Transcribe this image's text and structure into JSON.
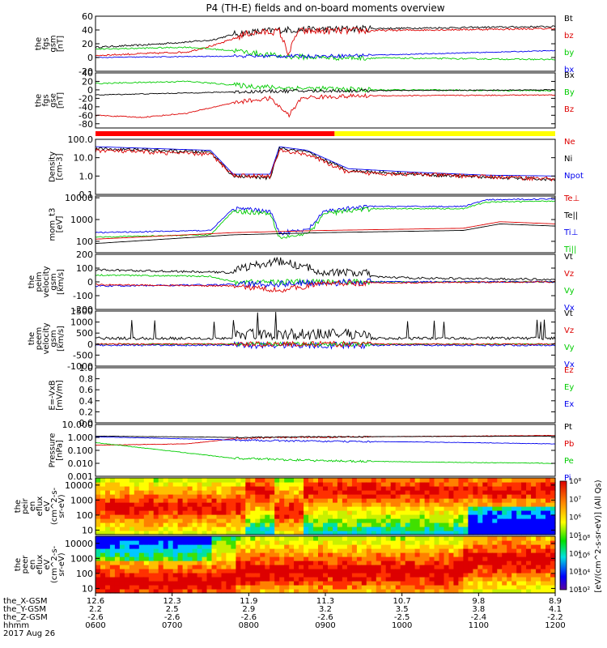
{
  "title": "P4 (TH-E) fields and on-board moments overview",
  "chart_data": {
    "type": "line",
    "panels": [
      {
        "id": "fgs-gsm",
        "ylabel": [
          "the",
          "fgs",
          "gsm",
          "[nT]"
        ],
        "ylim": [
          -20,
          60
        ],
        "ticks": [
          {
            "v": 60,
            "t": "60"
          },
          {
            "v": 40,
            "t": "40"
          },
          {
            "v": 20,
            "t": "20"
          },
          {
            "v": 0,
            "t": "0"
          },
          {
            "v": -20,
            "t": "-20"
          }
        ],
        "legend": [
          {
            "t": "Bt",
            "c": "#000000"
          },
          {
            "t": "bz",
            "c": "#dd0000"
          },
          {
            "t": "by",
            "c": "#00cc00"
          },
          {
            "t": "bx",
            "c": "#0000ee"
          }
        ]
      },
      {
        "id": "fgs-gse",
        "ylabel": [
          "the",
          "fgs",
          "gse",
          "[nT]"
        ],
        "ylim": [
          -90,
          40
        ],
        "ticks": [
          {
            "v": 40,
            "t": "40"
          },
          {
            "v": 20,
            "t": "20"
          },
          {
            "v": 0,
            "t": "0"
          },
          {
            "v": -20,
            "t": "-20"
          },
          {
            "v": -40,
            "t": "-40"
          },
          {
            "v": -60,
            "t": "-60"
          },
          {
            "v": -80,
            "t": "-80"
          }
        ],
        "legend": [
          {
            "t": "Bx",
            "c": "#000000"
          },
          {
            "t": "By",
            "c": "#00cc00"
          },
          {
            "t": "Bz",
            "c": "#dd0000"
          }
        ]
      },
      {
        "id": "density",
        "ylabel": [
          "Density",
          "[cm-3]"
        ],
        "ylim": [
          0.1,
          100
        ],
        "log": true,
        "ticks": [
          {
            "v": 100,
            "t": "100.0"
          },
          {
            "v": 10,
            "t": "10.0"
          },
          {
            "v": 1,
            "t": "1.0"
          },
          {
            "v": 0.1,
            "t": "0.1"
          }
        ],
        "legend": [
          {
            "t": "Ne",
            "c": "#dd0000"
          },
          {
            "t": "Ni",
            "c": "#000000"
          },
          {
            "t": "Npot",
            "c": "#0000ee"
          }
        ]
      },
      {
        "id": "temperature",
        "ylabel": [
          "mom_t3",
          "[eV]"
        ],
        "ylim": [
          30,
          12000
        ],
        "log": true,
        "ticks": [
          {
            "v": 10000,
            "t": "10000"
          },
          {
            "v": 1000,
            "t": "1000"
          },
          {
            "v": 100,
            "t": "100"
          }
        ],
        "legend": [
          {
            "t": "Te⊥",
            "c": "#dd0000"
          },
          {
            "t": "Te||",
            "c": "#000000"
          },
          {
            "t": "Ti⊥",
            "c": "#0000ee"
          },
          {
            "t": "Ti||",
            "c": "#00cc00"
          }
        ]
      },
      {
        "id": "ion-velocity",
        "ylabel": [
          "the",
          "peim",
          "velocity",
          "gsm",
          "[km/s]"
        ],
        "ylim": [
          -200,
          200
        ],
        "ticks": [
          {
            "v": 200,
            "t": "200"
          },
          {
            "v": 100,
            "t": "100"
          },
          {
            "v": 0,
            "t": "0"
          },
          {
            "v": -100,
            "t": "-100"
          },
          {
            "v": -200,
            "t": "-200"
          }
        ],
        "legend": [
          {
            "t": "Vt",
            "c": "#000000"
          },
          {
            "t": "Vz",
            "c": "#dd0000"
          },
          {
            "t": "Vy",
            "c": "#00cc00"
          },
          {
            "t": "Vx",
            "c": "#0000ee"
          }
        ]
      },
      {
        "id": "electron-velocity",
        "ylabel": [
          "the",
          "peem",
          "velocity",
          "gsm",
          "[km/s]"
        ],
        "ylim": [
          -1000,
          1500
        ],
        "ticks": [
          {
            "v": 1500,
            "t": "1500"
          },
          {
            "v": 1000,
            "t": "1000"
          },
          {
            "v": 500,
            "t": "500"
          },
          {
            "v": 0,
            "t": "0"
          },
          {
            "v": -500,
            "t": "-500"
          },
          {
            "v": -1000,
            "t": "-1000"
          }
        ],
        "legend": [
          {
            "t": "Vt",
            "c": "#000000"
          },
          {
            "t": "Vz",
            "c": "#dd0000"
          },
          {
            "t": "Vy",
            "c": "#00cc00"
          },
          {
            "t": "Vx",
            "c": "#0000ee"
          }
        ]
      },
      {
        "id": "efield",
        "ylabel": [
          "E=-VxB",
          "[mV/m]"
        ],
        "ylim": [
          0,
          1
        ],
        "ticks": [
          {
            "v": 1,
            "t": "1.0"
          },
          {
            "v": 0.8,
            "t": "0.8"
          },
          {
            "v": 0.6,
            "t": "0.6"
          },
          {
            "v": 0.4,
            "t": "0.4"
          },
          {
            "v": 0.2,
            "t": "0.2"
          },
          {
            "v": 0,
            "t": "0.0"
          }
        ],
        "legend": [
          {
            "t": "Ez",
            "c": "#dd0000"
          },
          {
            "t": "Ey",
            "c": "#00cc00"
          },
          {
            "t": "Ex",
            "c": "#0000ee"
          }
        ]
      },
      {
        "id": "pressure",
        "ylabel": [
          "Pressure",
          "[nPa]"
        ],
        "ylim": [
          0.001,
          10
        ],
        "log": true,
        "ticks": [
          {
            "v": 10,
            "t": "10.000"
          },
          {
            "v": 1,
            "t": "1.000"
          },
          {
            "v": 0.1,
            "t": "0.100"
          },
          {
            "v": 0.01,
            "t": "0.010"
          },
          {
            "v": 0.001,
            "t": "0.001"
          }
        ],
        "legend": [
          {
            "t": "Pt",
            "c": "#000000"
          },
          {
            "t": "Pb",
            "c": "#dd0000"
          },
          {
            "t": "Pe",
            "c": "#00cc00"
          },
          {
            "t": "Pi",
            "c": "#0000ee"
          }
        ]
      },
      {
        "id": "ion-spectrogram",
        "ylabel": [
          "the",
          "peir",
          "en",
          "eflux",
          "eV",
          "(cm^2-s-",
          "sr-eV)"
        ],
        "ylim": [
          5,
          30000
        ],
        "log": true,
        "ticks": [
          {
            "v": 10000,
            "t": "10000"
          },
          {
            "v": 1000,
            "t": "1000"
          },
          {
            "v": 100,
            "t": "100"
          },
          {
            "v": 10,
            "t": "10"
          }
        ]
      },
      {
        "id": "electron-spectrogram",
        "ylabel": [
          "the",
          "peer",
          "en",
          "eflux",
          "eV",
          "(cm^2-s-",
          "sr-eV)"
        ],
        "ylim": [
          5,
          30000
        ],
        "log": true,
        "ticks": [
          {
            "v": 10000,
            "t": "10000"
          },
          {
            "v": 1000,
            "t": "1000"
          },
          {
            "v": 100,
            "t": "100"
          },
          {
            "v": 10,
            "t": "10"
          }
        ]
      }
    ],
    "colorbar": {
      "label": "[eV/(cm^2-s-sr-eV)] (All Qs)",
      "ticks": [
        {
          "v": 8,
          "t": "10⁸"
        },
        {
          "v": 7,
          "t": "10⁷"
        },
        {
          "v": 6,
          "t": "10⁶"
        },
        {
          "v": 5,
          "t": "10⁵"
        },
        {
          "v": 4,
          "t": "10⁴"
        },
        {
          "v": 3,
          "t": "10³"
        },
        {
          "v": 2,
          "t": "10²"
        }
      ],
      "ticks2": [
        {
          "v": 8,
          "t": "10⁸"
        },
        {
          "v": 6,
          "t": "10⁶"
        },
        {
          "v": 4,
          "t": "10⁴"
        },
        {
          "v": 2,
          "t": "10²"
        }
      ]
    },
    "mode_bar": [
      {
        "from": 0,
        "to": 0.52,
        "color": "#ff0000"
      },
      {
        "from": 0.52,
        "to": 1,
        "color": "#ffff00"
      }
    ],
    "time_axis": {
      "row_labels": [
        "the_X-GSM",
        "the_Y-GSM",
        "the_Z-GSM",
        "hhmm",
        "2017 Aug 26"
      ],
      "columns": [
        {
          "x": "12.6",
          "y": "2.2",
          "z": "-2.6",
          "hhmm": "0600"
        },
        {
          "x": "12.3",
          "y": "2.5",
          "z": "-2.6",
          "hhmm": "0700"
        },
        {
          "x": "11.9",
          "y": "2.9",
          "z": "-2.6",
          "hhmm": "0800"
        },
        {
          "x": "11.3",
          "y": "3.2",
          "z": "-2.6",
          "hhmm": "0900"
        },
        {
          "x": "10.7",
          "y": "3.5",
          "z": "-2.5",
          "hhmm": "1000"
        },
        {
          "x": "9.8",
          "y": "3.8",
          "z": "-2.4",
          "hhmm": "1100"
        },
        {
          "x": "8.9",
          "y": "4.1",
          "z": "-2.2",
          "hhmm": "1200"
        }
      ]
    }
  }
}
